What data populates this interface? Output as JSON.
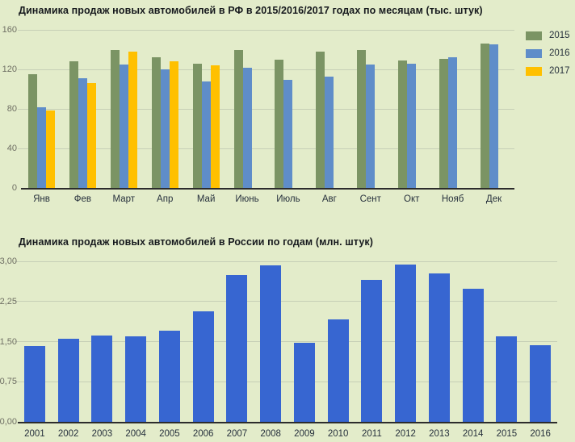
{
  "page": {
    "background_color": "#E3ECCA"
  },
  "chart_data": [
    {
      "type": "bar",
      "title": "Динамика продаж новых автомобилей в РФ в 2015/2016/2017 годах по месяцам (тыс. штук)",
      "xlabel": "",
      "ylabel": "",
      "ylim": [
        0,
        160
      ],
      "grid": true,
      "legend_position": "right",
      "categories": [
        "Янв",
        "Фев",
        "Март",
        "Апр",
        "Май",
        "Июнь",
        "Июль",
        "Авг",
        "Сент",
        "Окт",
        "Нояб",
        "Дек"
      ],
      "yticks": [
        {
          "value": 0,
          "label": "0"
        },
        {
          "value": 40,
          "label": "40"
        },
        {
          "value": 80,
          "label": "80"
        },
        {
          "value": 120,
          "label": "120"
        },
        {
          "value": 160,
          "label": "160"
        }
      ],
      "series": [
        {
          "name": "2015",
          "color": "#7B9464",
          "values": [
            115,
            128,
            140,
            132,
            126,
            140,
            130,
            138,
            140,
            129,
            131,
            146
          ]
        },
        {
          "name": "2016",
          "color": "#5F8DC9",
          "values": [
            82,
            111,
            125,
            120,
            108,
            122,
            109,
            113,
            125,
            126,
            132,
            145
          ]
        },
        {
          "name": "2017",
          "color": "#FFC000",
          "values": [
            78,
            106,
            138,
            128,
            124,
            null,
            null,
            null,
            null,
            null,
            null,
            null
          ]
        }
      ]
    },
    {
      "type": "bar",
      "title": "Динамика продаж новых автомобилей в России по годам (млн. штук)",
      "xlabel": "",
      "ylabel": "",
      "ylim": [
        0,
        3
      ],
      "grid": true,
      "legend_position": "none",
      "categories": [
        "2001",
        "2002",
        "2003",
        "2004",
        "2005",
        "2006",
        "2007",
        "2008",
        "2009",
        "2010",
        "2011",
        "2012",
        "2013",
        "2014",
        "2015",
        "2016"
      ],
      "yticks": [
        {
          "value": 0,
          "label": "0,00"
        },
        {
          "value": 0.75,
          "label": "0,75"
        },
        {
          "value": 1.5,
          "label": "1,50"
        },
        {
          "value": 2.25,
          "label": "2,25"
        },
        {
          "value": 3,
          "label": "3,00"
        }
      ],
      "series": [
        {
          "name": "",
          "color": "#3766D1",
          "values": [
            1.42,
            1.55,
            1.62,
            1.6,
            1.7,
            2.07,
            2.75,
            2.92,
            1.47,
            1.91,
            2.65,
            2.94,
            2.78,
            2.49,
            1.6,
            1.43
          ]
        }
      ]
    }
  ]
}
